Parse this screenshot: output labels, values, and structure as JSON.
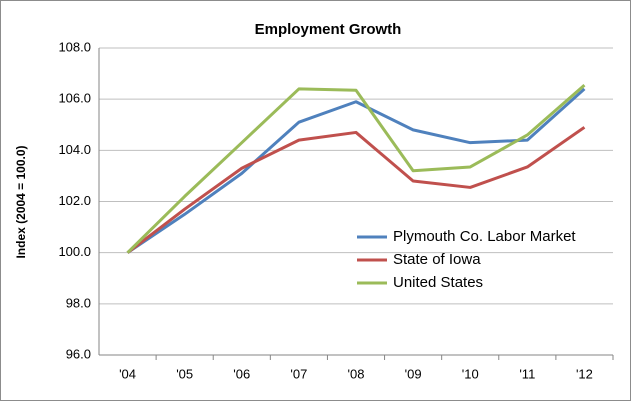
{
  "chart_data": {
    "type": "line",
    "title": "Employment Growth",
    "y_label": "Index (2004 = 100.0)",
    "categories": [
      "'04",
      "'05",
      "'06",
      "'07",
      "'08",
      "'09",
      "'10",
      "'11",
      "'12"
    ],
    "series": [
      {
        "name": "Plymouth Co. Labor Market",
        "color": "#4f81bd",
        "values": [
          100,
          101.5,
          103.1,
          105.1,
          105.9,
          104.8,
          104.3,
          104.4,
          106.4
        ]
      },
      {
        "name": "State of Iowa",
        "color": "#c0504d",
        "values": [
          100,
          101.7,
          103.3,
          104.4,
          104.7,
          102.8,
          102.55,
          103.35,
          104.9
        ]
      },
      {
        "name": "United States",
        "color": "#9bbb59",
        "values": [
          100,
          102.2,
          104.3,
          106.4,
          106.35,
          103.2,
          103.35,
          104.6,
          106.55
        ]
      }
    ],
    "ylim": [
      96,
      108
    ],
    "yticks": [
      {
        "value": 96,
        "label": "96.0"
      },
      {
        "value": 98,
        "label": "98.0"
      },
      {
        "value": 100,
        "label": "100.0"
      },
      {
        "value": 102,
        "label": "102.0"
      },
      {
        "value": 104,
        "label": "104.0"
      },
      {
        "value": 106,
        "label": "106.0"
      },
      {
        "value": 108,
        "label": "108.0"
      }
    ],
    "grid": true,
    "legend": "right"
  }
}
